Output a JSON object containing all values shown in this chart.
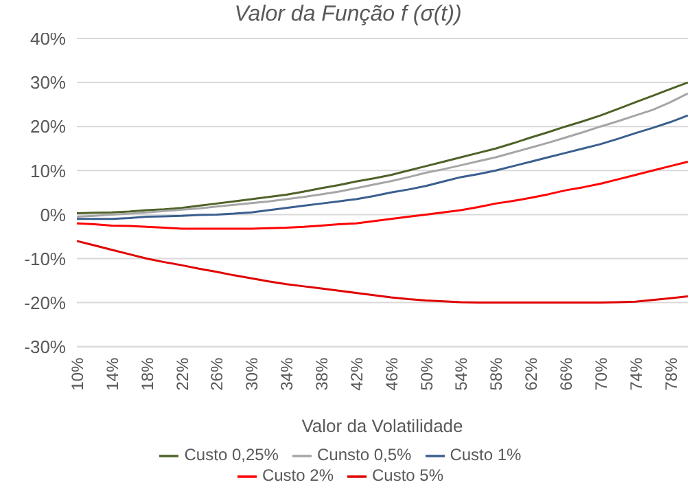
{
  "chart_data": {
    "type": "line",
    "title": "Valor da Função f (σ(t))",
    "xlabel": "Valor da Volatilidade",
    "categories": [
      "10%",
      null,
      "14%",
      null,
      "18%",
      null,
      "22%",
      null,
      "26%",
      null,
      "30%",
      null,
      "34%",
      null,
      "38%",
      null,
      "42%",
      null,
      "46%",
      null,
      "50%",
      null,
      "54%",
      null,
      "58%",
      null,
      "62%",
      null,
      "66%",
      null,
      "70%",
      null,
      "74%",
      null,
      "78%",
      null
    ],
    "series": [
      {
        "name": "Custo 0,25%",
        "color": "#4f6228",
        "values": [
          0.3,
          0.4,
          0.5,
          0.7,
          1,
          1.2,
          1.5,
          2,
          2.5,
          3,
          3.5,
          4,
          4.5,
          5.2,
          6,
          6.7,
          7.5,
          8.2,
          9,
          10,
          11,
          12,
          13,
          14,
          15,
          16.2,
          17.5,
          18.7,
          20,
          21.2,
          22.5,
          24,
          25.5,
          27,
          28.5,
          30
        ]
      },
      {
        "name": "Cunsto 0,5%",
        "color": "#a6a6a6",
        "values": [
          -0.5,
          -0.3,
          0,
          0.2,
          0.5,
          0.8,
          1.1,
          1.4,
          1.8,
          2.2,
          2.6,
          3,
          3.5,
          4,
          4.6,
          5.2,
          6,
          6.8,
          7.6,
          8.5,
          9.5,
          10.3,
          11.2,
          12.1,
          13,
          14.1,
          15.2,
          16.3,
          17.5,
          18.7,
          20,
          21.2,
          22.5,
          23.8,
          25.5,
          27.5
        ]
      },
      {
        "name": "Custo 1%",
        "color": "#3a5f8f",
        "values": [
          -1,
          -1,
          -1,
          -0.8,
          -0.5,
          -0.4,
          -0.3,
          -0.1,
          0,
          0.2,
          0.5,
          1,
          1.5,
          2,
          2.5,
          3,
          3.5,
          4.2,
          5,
          5.7,
          6.5,
          7.5,
          8.5,
          9.2,
          10,
          11,
          12,
          13,
          14,
          15,
          16,
          17.2,
          18.5,
          19.7,
          21,
          22.5
        ]
      },
      {
        "name": "Custo 2%",
        "color": "#ff0000",
        "values": [
          -2,
          -2.2,
          -2.5,
          -2.6,
          -2.8,
          -3,
          -3.2,
          -3.2,
          -3.2,
          -3.2,
          -3.2,
          -3.1,
          -3,
          -2.8,
          -2.5,
          -2.2,
          -2,
          -1.5,
          -1,
          -0.5,
          0,
          0.5,
          1,
          1.7,
          2.5,
          3.1,
          3.8,
          4.6,
          5.5,
          6.2,
          7,
          8,
          9,
          10,
          11,
          12
        ]
      },
      {
        "name": "Custo 5%",
        "color": "#e00000",
        "values": [
          -6,
          -7,
          -8,
          -9,
          -10,
          -10.8,
          -11.5,
          -12.3,
          -13,
          -13.8,
          -14.5,
          -15.2,
          -15.8,
          -16.3,
          -16.8,
          -17.3,
          -17.8,
          -18.3,
          -18.8,
          -19.2,
          -19.5,
          -19.7,
          -19.9,
          -20,
          -20,
          -20,
          -20,
          -20,
          -20,
          -20,
          -20,
          -19.9,
          -19.8,
          -19.4,
          -19,
          -18.6
        ]
      }
    ],
    "ylim": [
      -30,
      40
    ],
    "yticks": [
      {
        "value": -30,
        "label": "-30%"
      },
      {
        "value": -20,
        "label": "-20%"
      },
      {
        "value": -10,
        "label": "-10%"
      },
      {
        "value": 0,
        "label": "0%"
      },
      {
        "value": 10,
        "label": "10%"
      },
      {
        "value": 20,
        "label": "20%"
      },
      {
        "value": 30,
        "label": "30%"
      },
      {
        "value": 40,
        "label": "40%"
      }
    ],
    "grid": "y",
    "legend": "bottom",
    "marker": "none",
    "line_style": "solid"
  }
}
